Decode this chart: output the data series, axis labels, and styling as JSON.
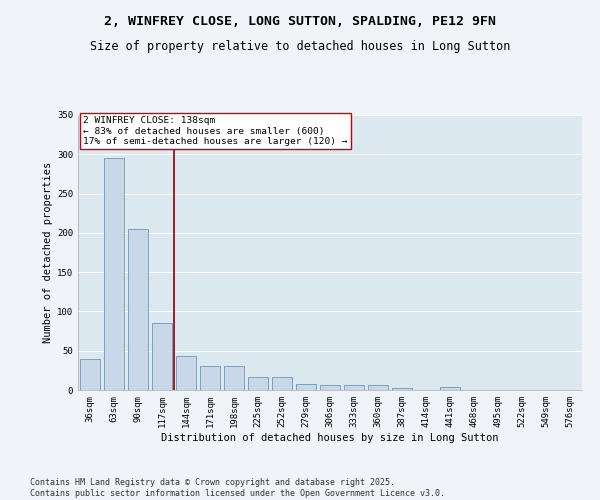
{
  "title": "2, WINFREY CLOSE, LONG SUTTON, SPALDING, PE12 9FN",
  "subtitle": "Size of property relative to detached houses in Long Sutton",
  "xlabel": "Distribution of detached houses by size in Long Sutton",
  "ylabel": "Number of detached properties",
  "categories": [
    "36sqm",
    "63sqm",
    "90sqm",
    "117sqm",
    "144sqm",
    "171sqm",
    "198sqm",
    "225sqm",
    "252sqm",
    "279sqm",
    "306sqm",
    "333sqm",
    "360sqm",
    "387sqm",
    "414sqm",
    "441sqm",
    "468sqm",
    "495sqm",
    "522sqm",
    "549sqm",
    "576sqm"
  ],
  "values": [
    40,
    295,
    205,
    85,
    43,
    30,
    30,
    16,
    16,
    8,
    6,
    7,
    6,
    3,
    0,
    4,
    0,
    0,
    0,
    0,
    0
  ],
  "bar_color": "#c8d8e8",
  "bar_edge_color": "#5a8ab0",
  "vline_x_index": 3.5,
  "vline_color": "#8b0000",
  "annotation_text": "2 WINFREY CLOSE: 138sqm\n← 83% of detached houses are smaller (600)\n17% of semi-detached houses are larger (120) →",
  "annotation_box_color": "#ffffff",
  "annotation_box_edge": "#cc0000",
  "ylim": [
    0,
    350
  ],
  "yticks": [
    0,
    50,
    100,
    150,
    200,
    250,
    300,
    350
  ],
  "background_color": "#dce8f0",
  "grid_color": "#ffffff",
  "fig_background": "#f0f4f8",
  "footer_line1": "Contains HM Land Registry data © Crown copyright and database right 2025.",
  "footer_line2": "Contains public sector information licensed under the Open Government Licence v3.0.",
  "title_fontsize": 9.5,
  "subtitle_fontsize": 8.5,
  "axis_label_fontsize": 7.5,
  "tick_fontsize": 6.5,
  "annotation_fontsize": 6.8,
  "footer_fontsize": 6.0
}
